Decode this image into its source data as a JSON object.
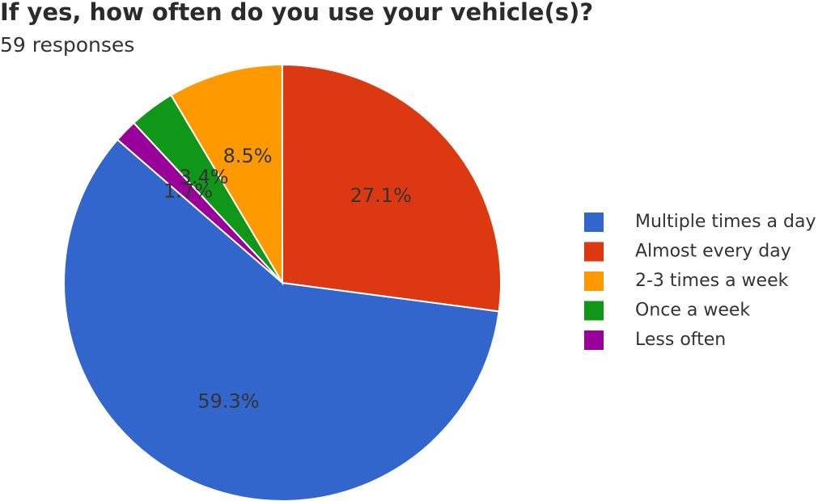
{
  "chart_data": {
    "type": "pie",
    "title": "If yes, how often do you use your vehicle(s)?",
    "subtitle": "59 responses",
    "categories": [
      "Multiple times a day",
      "Almost every day",
      "2-3 times a week",
      "Once a week",
      "Less often"
    ],
    "values": [
      59.3,
      27.1,
      8.5,
      3.4,
      1.7
    ],
    "value_labels": [
      "59.3%",
      "27.1%",
      "8.5%",
      "3.4%",
      "1.7%"
    ],
    "colors": [
      "#3366cc",
      "#dc3912",
      "#ff9900",
      "#109618",
      "#990099"
    ],
    "legend": "right"
  }
}
